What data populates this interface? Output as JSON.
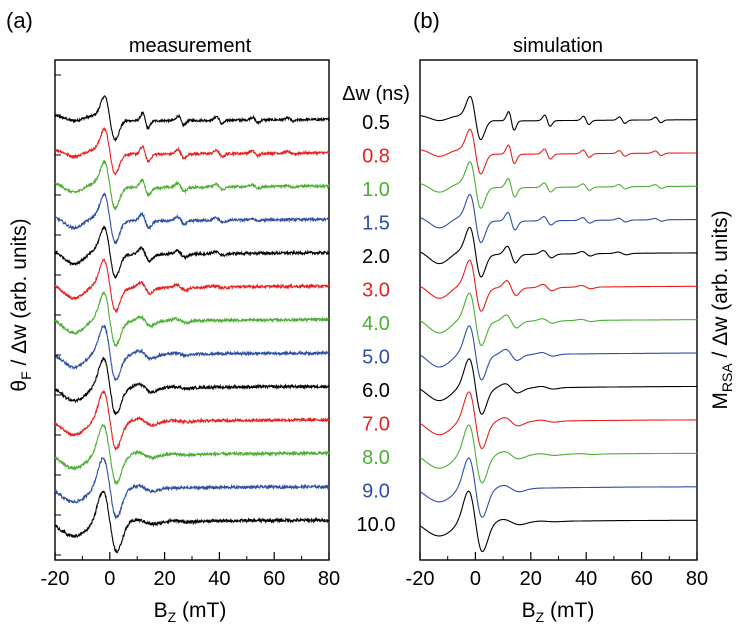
{
  "colors": {
    "black": "#000000",
    "red": "#e8201d",
    "green": "#4cae34",
    "blue": "#2d4fa3"
  },
  "legend_header": "Δw (ns)",
  "chart_data": [
    {
      "panel_label": "(a)",
      "title": "measurement",
      "type": "line",
      "xlabel": "B",
      "xlabel_sub": "Z",
      "xlabel_unit": "(mT)",
      "ylabel": "θ",
      "ylabel_sub": "F",
      "ylabel_rest": " / Δw (arb. units)",
      "xlim": [
        -20,
        80
      ],
      "x_ticks": [
        -20,
        0,
        20,
        40,
        60,
        80
      ],
      "noise": true,
      "series": [
        {
          "name": "0.5",
          "color": "black",
          "offset": 12,
          "amp": 1.3,
          "dip": 0.5,
          "peak_width": 1.0,
          "peaks": [
            13,
            26,
            40,
            53,
            66
          ],
          "peak_amps": [
            0.8,
            0.5,
            0.4,
            0.3,
            0.2
          ],
          "decay": 0.01
        },
        {
          "name": "0.8",
          "color": "red",
          "offset": 11,
          "amp": 1.35,
          "dip": 0.7,
          "peak_width": 1.1,
          "peaks": [
            13,
            26,
            40,
            53,
            66
          ],
          "peak_amps": [
            0.8,
            0.5,
            0.35,
            0.25,
            0.15
          ],
          "decay": 0.012
        },
        {
          "name": "1.0",
          "color": "green",
          "offset": 10,
          "amp": 1.4,
          "dip": 0.9,
          "peak_width": 1.2,
          "peaks": [
            13,
            26,
            40,
            53,
            66
          ],
          "peak_amps": [
            0.8,
            0.45,
            0.3,
            0.2,
            0.1
          ],
          "decay": 0.014
        },
        {
          "name": "1.5",
          "color": "blue",
          "offset": 9,
          "amp": 1.45,
          "dip": 1.1,
          "peak_width": 1.3,
          "peaks": [
            13,
            26,
            40,
            53
          ],
          "peak_amps": [
            0.75,
            0.4,
            0.25,
            0.12
          ],
          "decay": 0.016
        },
        {
          "name": "2.0",
          "color": "black",
          "offset": 8,
          "amp": 1.5,
          "dip": 1.3,
          "peak_width": 1.5,
          "peaks": [
            13,
            26,
            40
          ],
          "peak_amps": [
            0.7,
            0.35,
            0.18
          ],
          "decay": 0.018
        },
        {
          "name": "3.0",
          "color": "red",
          "offset": 7,
          "amp": 1.55,
          "dip": 1.4,
          "peak_width": 1.7,
          "peaks": [
            13,
            26,
            40
          ],
          "peak_amps": [
            0.6,
            0.28,
            0.12
          ],
          "decay": 0.02
        },
        {
          "name": "4.0",
          "color": "green",
          "offset": 6,
          "amp": 1.6,
          "dip": 1.5,
          "peak_width": 1.9,
          "peaks": [
            13,
            26
          ],
          "peak_amps": [
            0.5,
            0.22
          ],
          "decay": 0.022
        },
        {
          "name": "5.0",
          "color": "blue",
          "offset": 5,
          "amp": 1.65,
          "dip": 1.55,
          "peak_width": 2.1,
          "peaks": [
            13,
            26
          ],
          "peak_amps": [
            0.45,
            0.15
          ],
          "decay": 0.024
        },
        {
          "name": "6.0",
          "color": "black",
          "offset": 4,
          "amp": 1.7,
          "dip": 1.55,
          "peak_width": 2.3,
          "peaks": [
            13,
            26
          ],
          "peak_amps": [
            0.45,
            0.12
          ],
          "decay": 0.026
        },
        {
          "name": "7.0",
          "color": "red",
          "offset": 3,
          "amp": 1.75,
          "dip": 1.6,
          "peak_width": 2.5,
          "peaks": [
            13,
            26
          ],
          "peak_amps": [
            0.35,
            0.1
          ],
          "decay": 0.028
        },
        {
          "name": "8.0",
          "color": "green",
          "offset": 2,
          "amp": 1.8,
          "dip": 1.6,
          "peak_width": 2.7,
          "peaks": [
            13,
            26
          ],
          "peak_amps": [
            0.3,
            0.08
          ],
          "decay": 0.03
        },
        {
          "name": "9.0",
          "color": "blue",
          "offset": 1,
          "amp": 1.85,
          "dip": 1.6,
          "peak_width": 2.9,
          "peaks": [
            13
          ],
          "peak_amps": [
            0.3
          ],
          "decay": 0.032
        },
        {
          "name": "10.0",
          "color": "black",
          "offset": 0,
          "amp": 1.9,
          "dip": 1.65,
          "peak_width": 3.1,
          "peaks": [
            13,
            26
          ],
          "peak_amps": [
            0.25,
            0.1
          ],
          "decay": 0.034
        }
      ]
    },
    {
      "panel_label": "(b)",
      "title": "simulation",
      "type": "line",
      "xlabel": "B",
      "xlabel_sub": "Z",
      "xlabel_unit": "(mT)",
      "ylabel": "M",
      "ylabel_sub": "RSA",
      "ylabel_rest": " / Δw (arb. units)",
      "xlim": [
        -20,
        80
      ],
      "x_ticks": [
        -20,
        0,
        20,
        40,
        60,
        80
      ],
      "noise": false,
      "series": [
        {
          "name": "0.5",
          "color": "black",
          "offset": 12,
          "amp": 1.3,
          "dip": 0.5,
          "peak_width": 1.0,
          "peaks": [
            13,
            26,
            40,
            53,
            66
          ],
          "peak_amps": [
            1.0,
            0.6,
            0.45,
            0.35,
            0.3
          ],
          "decay": 0.008
        },
        {
          "name": "0.8",
          "color": "red",
          "offset": 11,
          "amp": 1.35,
          "dip": 0.7,
          "peak_width": 1.1,
          "peaks": [
            13,
            26,
            40,
            53,
            66
          ],
          "peak_amps": [
            1.0,
            0.55,
            0.4,
            0.3,
            0.25
          ],
          "decay": 0.01
        },
        {
          "name": "1.0",
          "color": "green",
          "offset": 10,
          "amp": 1.4,
          "dip": 0.9,
          "peak_width": 1.2,
          "peaks": [
            13,
            26,
            40,
            53,
            66
          ],
          "peak_amps": [
            1.0,
            0.5,
            0.35,
            0.25,
            0.2
          ],
          "decay": 0.012
        },
        {
          "name": "1.5",
          "color": "blue",
          "offset": 9,
          "amp": 1.45,
          "dip": 1.1,
          "peak_width": 1.3,
          "peaks": [
            13,
            26,
            40,
            53,
            66
          ],
          "peak_amps": [
            0.95,
            0.45,
            0.3,
            0.2,
            0.15
          ],
          "decay": 0.014
        },
        {
          "name": "2.0",
          "color": "black",
          "offset": 8,
          "amp": 1.5,
          "dip": 1.3,
          "peak_width": 1.5,
          "peaks": [
            13,
            26,
            40,
            53
          ],
          "peak_amps": [
            0.9,
            0.4,
            0.25,
            0.15
          ],
          "decay": 0.016
        },
        {
          "name": "3.0",
          "color": "red",
          "offset": 7,
          "amp": 1.55,
          "dip": 1.4,
          "peak_width": 1.7,
          "peaks": [
            13,
            26,
            40
          ],
          "peak_amps": [
            0.8,
            0.35,
            0.18
          ],
          "decay": 0.018
        },
        {
          "name": "4.0",
          "color": "green",
          "offset": 6,
          "amp": 1.6,
          "dip": 1.5,
          "peak_width": 1.9,
          "peaks": [
            13,
            26,
            40
          ],
          "peak_amps": [
            0.7,
            0.25,
            0.12
          ],
          "decay": 0.02
        },
        {
          "name": "5.0",
          "color": "blue",
          "offset": 5,
          "amp": 1.65,
          "dip": 1.55,
          "peak_width": 2.1,
          "peaks": [
            13,
            26
          ],
          "peak_amps": [
            0.6,
            0.2
          ],
          "decay": 0.022
        },
        {
          "name": "6.0",
          "color": "black",
          "offset": 4,
          "amp": 1.7,
          "dip": 1.55,
          "peak_width": 2.3,
          "peaks": [
            13,
            26
          ],
          "peak_amps": [
            0.5,
            0.15
          ],
          "decay": 0.024
        },
        {
          "name": "7.0",
          "color": "red",
          "offset": 3,
          "amp": 1.75,
          "dip": 1.6,
          "peak_width": 2.5,
          "peaks": [
            13,
            26
          ],
          "peak_amps": [
            0.45,
            0.12
          ],
          "decay": 0.026
        },
        {
          "name": "8.0",
          "color": "green",
          "offset": 2,
          "amp": 1.8,
          "dip": 1.6,
          "peak_width": 2.7,
          "peaks": [
            13,
            26,
            40
          ],
          "peak_amps": [
            0.4,
            0.1,
            0.05
          ],
          "decay": 0.028
        },
        {
          "name": "9.0",
          "color": "blue",
          "offset": 1,
          "amp": 1.85,
          "dip": 1.6,
          "peak_width": 2.9,
          "peaks": [
            13
          ],
          "peak_amps": [
            0.35
          ],
          "decay": 0.03
        },
        {
          "name": "10.0",
          "color": "black",
          "offset": 0,
          "amp": 1.9,
          "dip": 1.65,
          "peak_width": 3.1,
          "peaks": [
            13,
            26
          ],
          "peak_amps": [
            0.3,
            0.05
          ],
          "decay": 0.032
        }
      ]
    }
  ]
}
